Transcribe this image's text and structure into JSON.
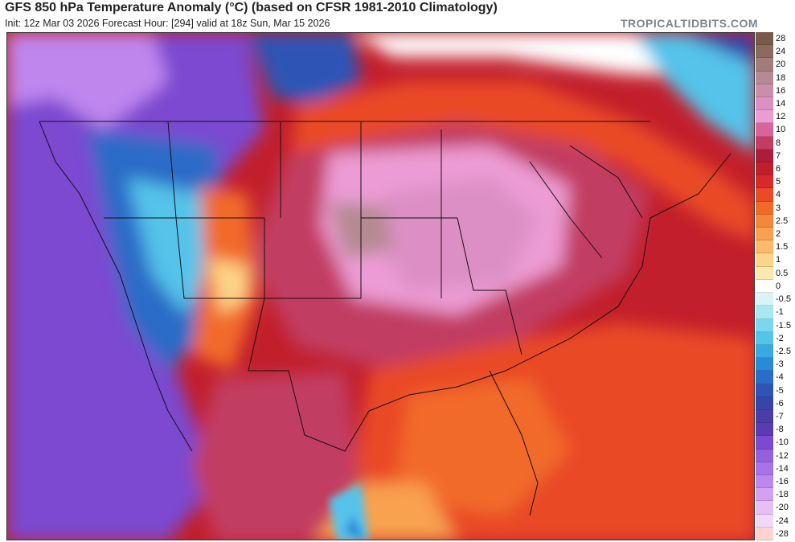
{
  "header": {
    "title": "GFS 850 hPa Temperature Anomaly (°C) (based on CFSR 1981-2010 Climatology)",
    "subtitle": "Init: 12z Mar 03 2026   Forecast Hour: [294]   valid at 18z Sun, Mar 15 2026",
    "brand": "TROPICALTIDBITS.COM"
  },
  "colorbar": {
    "levels": [
      {
        "label": "28",
        "color": "#7a5a4a"
      },
      {
        "label": "24",
        "color": "#8c6a60"
      },
      {
        "label": "20",
        "color": "#a17c78"
      },
      {
        "label": "18",
        "color": "#b58a92"
      },
      {
        "label": "16",
        "color": "#c98faa"
      },
      {
        "label": "14",
        "color": "#dc8fc4"
      },
      {
        "label": "12",
        "color": "#ec9bd4"
      },
      {
        "label": "10",
        "color": "#d8649a"
      },
      {
        "label": "8",
        "color": "#c23d62"
      },
      {
        "label": "7",
        "color": "#ac1d3a"
      },
      {
        "label": "6",
        "color": "#c21f2c"
      },
      {
        "label": "5",
        "color": "#d9282a"
      },
      {
        "label": "4",
        "color": "#ea4a26"
      },
      {
        "label": "3",
        "color": "#f26a2a"
      },
      {
        "label": "2.5",
        "color": "#f5873a"
      },
      {
        "label": "2",
        "color": "#f8a150"
      },
      {
        "label": "1.5",
        "color": "#fbbb6b"
      },
      {
        "label": "1",
        "color": "#fdd488"
      },
      {
        "label": "0.5",
        "color": "#fee8b0"
      },
      {
        "label": "0",
        "color": "#ffffff"
      },
      {
        "label": "-0.5",
        "color": "#d9f4f7"
      },
      {
        "label": "-1",
        "color": "#a9e7f1"
      },
      {
        "label": "-1.5",
        "color": "#7bd6ee"
      },
      {
        "label": "-2",
        "color": "#55c3ea"
      },
      {
        "label": "-2.5",
        "color": "#3aa9e2"
      },
      {
        "label": "-3",
        "color": "#2b8ad8"
      },
      {
        "label": "-4",
        "color": "#2a6cc7"
      },
      {
        "label": "-5",
        "color": "#2e54b6"
      },
      {
        "label": "-6",
        "color": "#3845a8"
      },
      {
        "label": "-7",
        "color": "#4a3ea6"
      },
      {
        "label": "-8",
        "color": "#5a3bb0"
      },
      {
        "label": "-10",
        "color": "#7c4ad0"
      },
      {
        "label": "-12",
        "color": "#9460df"
      },
      {
        "label": "-14",
        "color": "#aa72e8"
      },
      {
        "label": "-16",
        "color": "#bf86ee"
      },
      {
        "label": "-18",
        "color": "#d4a0f2"
      },
      {
        "label": "-20",
        "color": "#e6bff5"
      },
      {
        "label": "-24",
        "color": "#f2d8f7"
      },
      {
        "label": "-28",
        "color": "#ffd4cf"
      }
    ]
  }
}
